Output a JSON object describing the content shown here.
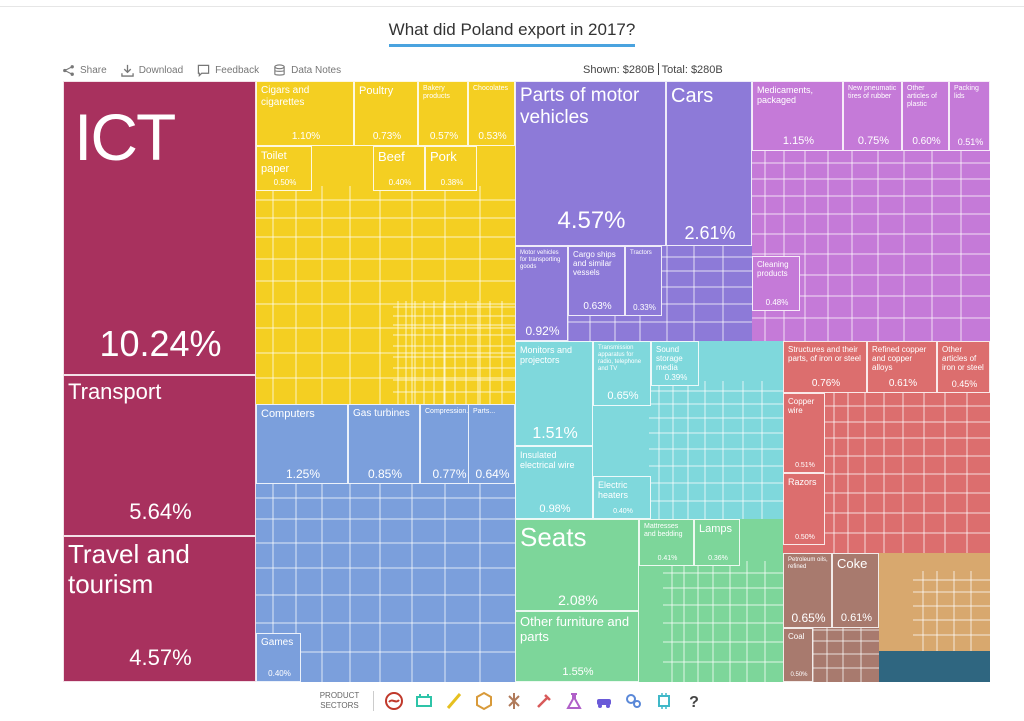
{
  "title": "What did Poland export in 2017?",
  "toolbar": {
    "share": "Share",
    "download": "Download",
    "feedback": "Feedback",
    "data_notes": "Data Notes"
  },
  "summary": {
    "shown_label": "Shown:",
    "shown_value": "$280B",
    "total_label": "Total:",
    "total_value": "$280B"
  },
  "sectors_label": "PRODUCT\nSECTORS",
  "colors": {
    "services": "#a8315e",
    "food": "#f4cf22",
    "machinery": "#7b9fdc",
    "vehicles": "#8d7ad8",
    "chemicals": "#c57ad8",
    "electronics": "#7fd8dc",
    "furniture": "#7dd69a",
    "metals": "#dc6e6e",
    "minerals": "#a87a6e",
    "stone": "#d8a86e",
    "other": "#2f6680"
  },
  "sector_icons": [
    {
      "name": "services-sector-icon",
      "color": "#c0392b"
    },
    {
      "name": "textiles-sector-icon",
      "color": "#2ec4a8"
    },
    {
      "name": "agriculture-sector-icon",
      "color": "#e6c020"
    },
    {
      "name": "stone-sector-icon",
      "color": "#d89a3a"
    },
    {
      "name": "minerals-sector-icon",
      "color": "#b07a5a"
    },
    {
      "name": "metals-sector-icon",
      "color": "#d85a5a"
    },
    {
      "name": "chemicals-sector-icon",
      "color": "#b060c8"
    },
    {
      "name": "vehicles-sector-icon",
      "color": "#6a5ad8"
    },
    {
      "name": "machinery-sector-icon",
      "color": "#5a88d8"
    },
    {
      "name": "electronics-sector-icon",
      "color": "#40b8c8"
    },
    {
      "name": "other-sector-icon",
      "color": "#444444"
    }
  ],
  "chart_data": {
    "type": "treemap",
    "title": "What did Poland export in 2017?",
    "total": "$280B",
    "items": [
      {
        "label": "ICT",
        "value": "10.24%",
        "share": 10.24,
        "group": "services"
      },
      {
        "label": "Transport",
        "value": "5.64%",
        "share": 5.64,
        "group": "services"
      },
      {
        "label": "Travel and tourism",
        "value": "4.57%",
        "share": 4.57,
        "group": "services"
      },
      {
        "label": "Cigars and cigarettes",
        "value": "1.10%",
        "share": 1.1,
        "group": "food"
      },
      {
        "label": "Poultry",
        "value": "0.73%",
        "share": 0.73,
        "group": "food"
      },
      {
        "label": "Bakery products",
        "value": "0.57%",
        "share": 0.57,
        "group": "food"
      },
      {
        "label": "Chocolates",
        "value": "0.53%",
        "share": 0.53,
        "group": "food"
      },
      {
        "label": "Toilet paper",
        "value": "0.50%",
        "share": 0.5,
        "group": "food"
      },
      {
        "label": "Beef",
        "value": "0.40%",
        "share": 0.4,
        "group": "food"
      },
      {
        "label": "Pork",
        "value": "0.38%",
        "share": 0.38,
        "group": "food"
      },
      {
        "label": "Computers",
        "value": "1.25%",
        "share": 1.25,
        "group": "machinery"
      },
      {
        "label": "Gas turbines",
        "value": "0.85%",
        "share": 0.85,
        "group": "machinery"
      },
      {
        "label": "Compression...",
        "value": "0.77%",
        "share": 0.77,
        "group": "machinery"
      },
      {
        "label": "Parts...",
        "value": "0.64%",
        "share": 0.64,
        "group": "machinery"
      },
      {
        "label": "Games",
        "value": "0.40%",
        "share": 0.4,
        "group": "machinery"
      },
      {
        "label": "Parts of motor vehicles",
        "value": "4.57%",
        "share": 4.57,
        "group": "vehicles"
      },
      {
        "label": "Cars",
        "value": "2.61%",
        "share": 2.61,
        "group": "vehicles"
      },
      {
        "label": "Motor vehicles for transporting goods",
        "value": "0.92%",
        "share": 0.92,
        "group": "vehicles"
      },
      {
        "label": "Cargo ships and similar vessels",
        "value": "0.63%",
        "share": 0.63,
        "group": "vehicles"
      },
      {
        "label": "Tractors",
        "value": "0.33%",
        "share": 0.33,
        "group": "vehicles"
      },
      {
        "label": "Medicaments, packaged",
        "value": "1.15%",
        "share": 1.15,
        "group": "chemicals"
      },
      {
        "label": "New pneumatic tires of rubber",
        "value": "0.75%",
        "share": 0.75,
        "group": "chemicals"
      },
      {
        "label": "Other articles of plastic",
        "value": "0.60%",
        "share": 0.6,
        "group": "chemicals"
      },
      {
        "label": "Packing lids",
        "value": "0.51%",
        "share": 0.51,
        "group": "chemicals"
      },
      {
        "label": "Cleaning products",
        "value": "0.48%",
        "share": 0.48,
        "group": "chemicals"
      },
      {
        "label": "Monitors and projectors",
        "value": "1.51%",
        "share": 1.51,
        "group": "electronics"
      },
      {
        "label": "Transmission apparatus for radio, telephone and TV",
        "value": "0.65%",
        "share": 0.65,
        "group": "electronics"
      },
      {
        "label": "Sound storage media",
        "value": "0.39%",
        "share": 0.39,
        "group": "electronics"
      },
      {
        "label": "Insulated electrical wire",
        "value": "0.98%",
        "share": 0.98,
        "group": "electronics"
      },
      {
        "label": "Electric heaters",
        "value": "0.40%",
        "share": 0.4,
        "group": "electronics"
      },
      {
        "label": "Seats",
        "value": "2.08%",
        "share": 2.08,
        "group": "furniture"
      },
      {
        "label": "Other furniture and parts",
        "value": "1.55%",
        "share": 1.55,
        "group": "furniture"
      },
      {
        "label": "Mattresses and bedding",
        "value": "0.41%",
        "share": 0.41,
        "group": "furniture"
      },
      {
        "label": "Lamps",
        "value": "0.36%",
        "share": 0.36,
        "group": "furniture"
      },
      {
        "label": "Structures and their parts, of iron or steel",
        "value": "0.76%",
        "share": 0.76,
        "group": "metals"
      },
      {
        "label": "Refined copper and copper alloys",
        "value": "0.61%",
        "share": 0.61,
        "group": "metals"
      },
      {
        "label": "Other articles of iron or steel",
        "value": "0.45%",
        "share": 0.45,
        "group": "metals"
      },
      {
        "label": "Copper wire",
        "value": "0.51%",
        "share": 0.51,
        "group": "metals"
      },
      {
        "label": "Razors",
        "value": "0.50%",
        "share": 0.5,
        "group": "metals"
      },
      {
        "label": "Petroleum oils, refined",
        "value": "0.65%",
        "share": 0.65,
        "group": "minerals"
      },
      {
        "label": "Coke",
        "value": "0.61%",
        "share": 0.61,
        "group": "minerals"
      },
      {
        "label": "Coal",
        "value": "0.50%",
        "share": 0.5,
        "group": "minerals"
      }
    ]
  }
}
